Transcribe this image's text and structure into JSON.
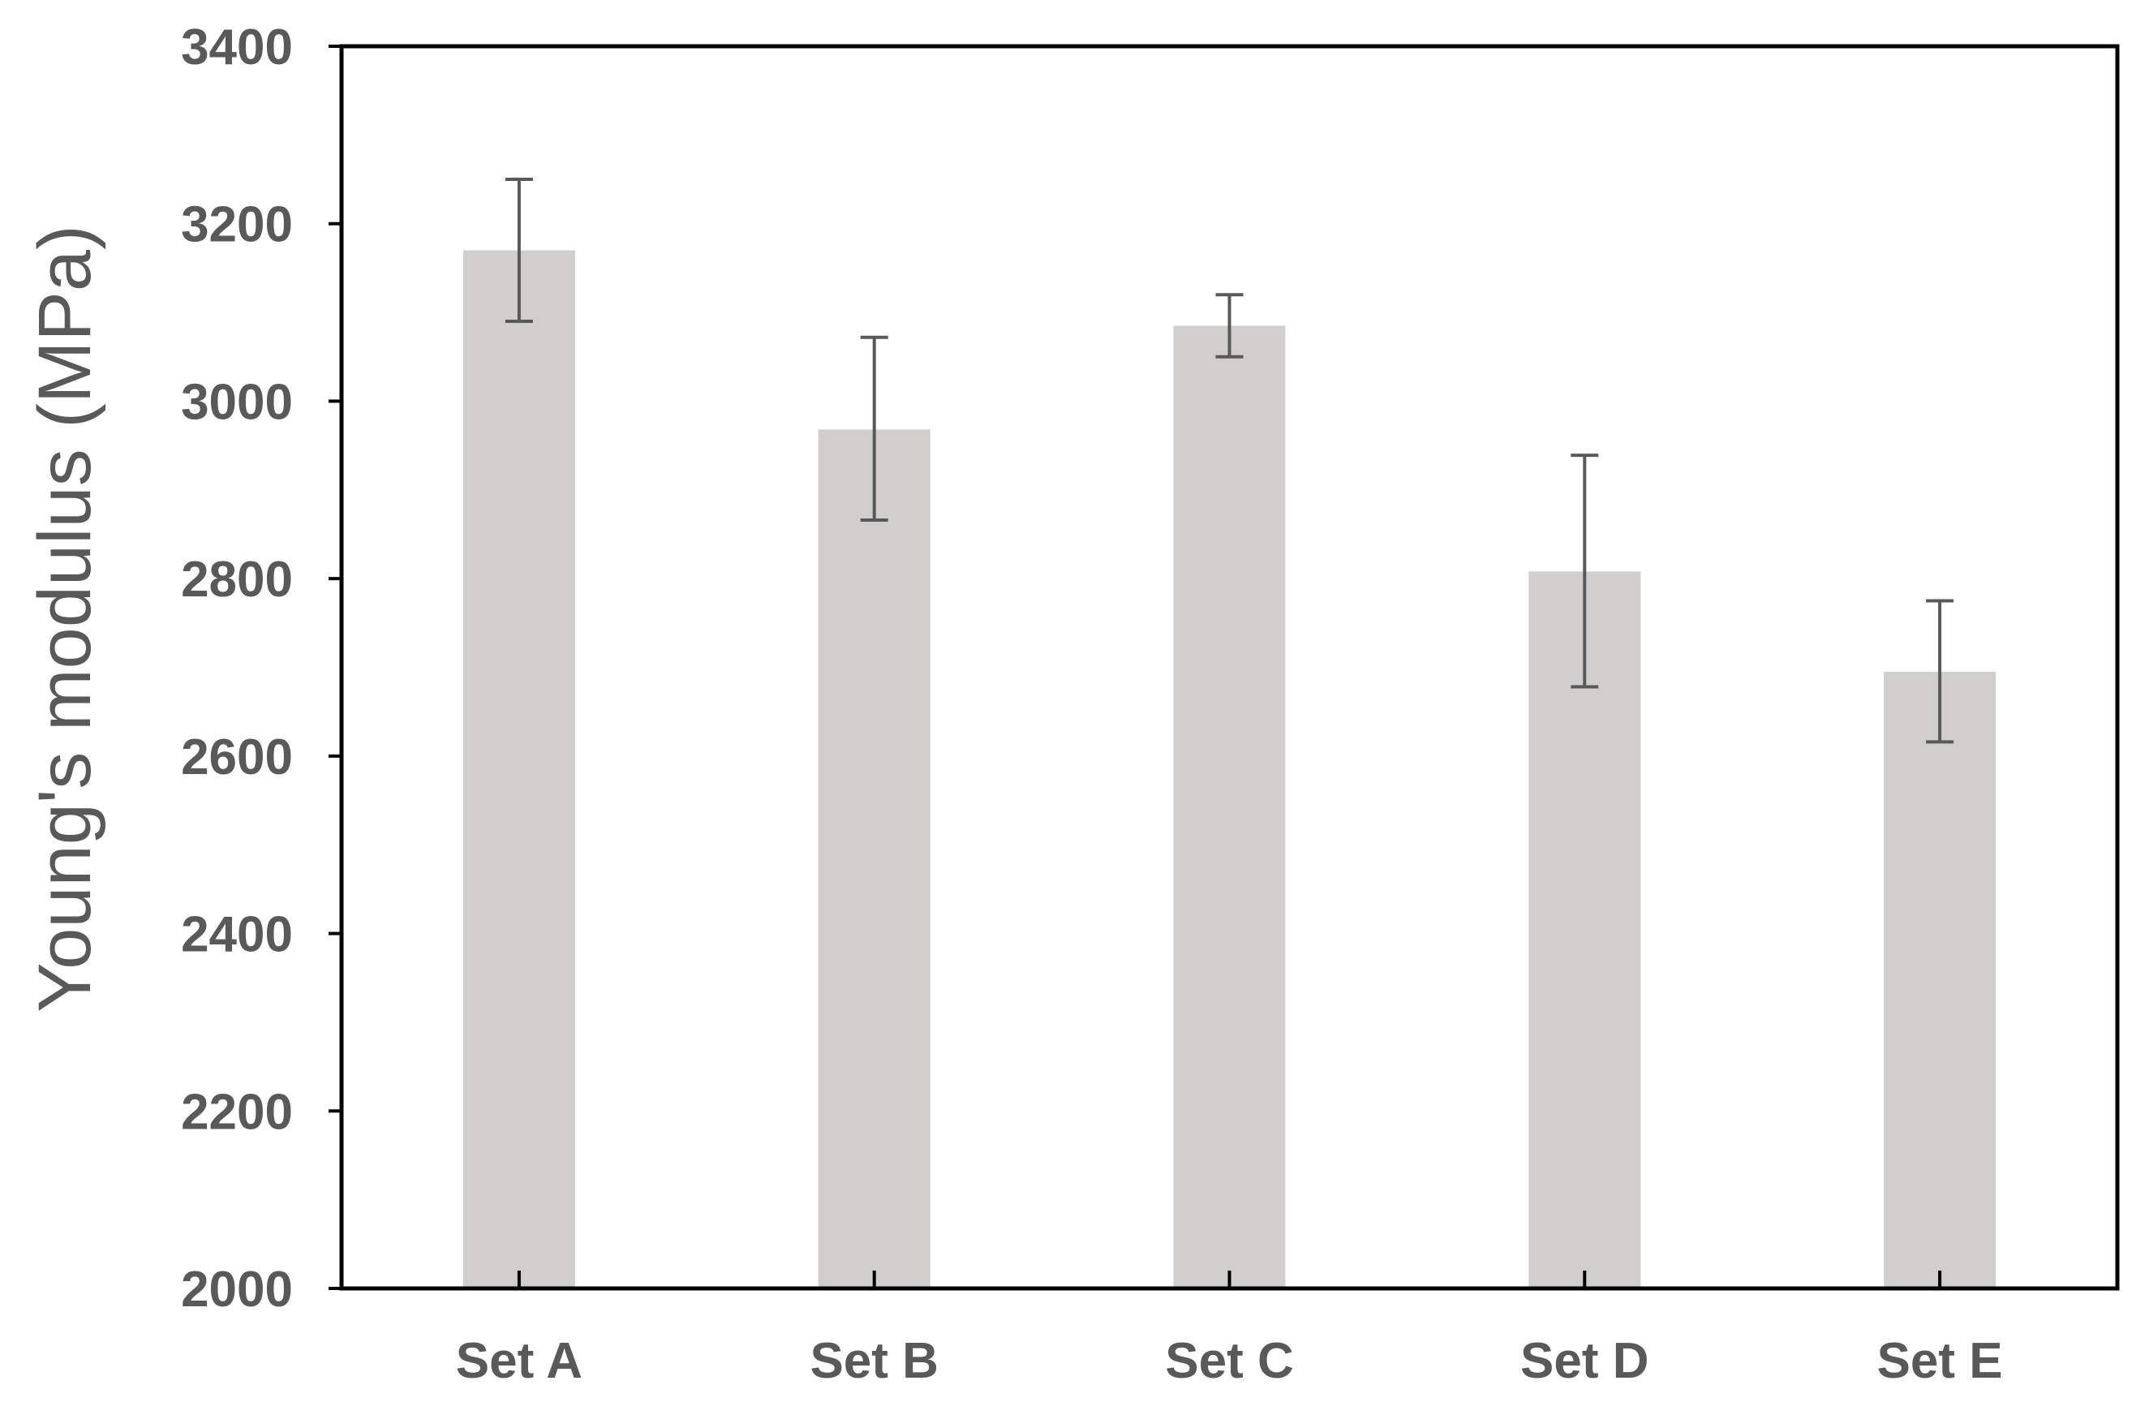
{
  "chart_data": {
    "type": "bar",
    "title": "",
    "xlabel": "",
    "ylabel": "Young's modulus (MPa)",
    "ylim": [
      2000,
      3400
    ],
    "yticks": [
      2000,
      2200,
      2400,
      2600,
      2800,
      3000,
      3200,
      3400
    ],
    "categories": [
      "Set A",
      "Set B",
      "Set C",
      "Set D",
      "Set E"
    ],
    "values": [
      3170,
      2968,
      3085,
      2808,
      2695
    ],
    "error_bars": {
      "upper": [
        3250,
        3072,
        3120,
        2939,
        2775
      ],
      "lower": [
        3090,
        2866,
        3050,
        2678,
        2616
      ]
    },
    "grid": false,
    "legend": "none",
    "colors": {
      "bar": "#d0cfcd",
      "error_bar": "#595959",
      "axis": "#000000",
      "text": "#595959"
    }
  }
}
